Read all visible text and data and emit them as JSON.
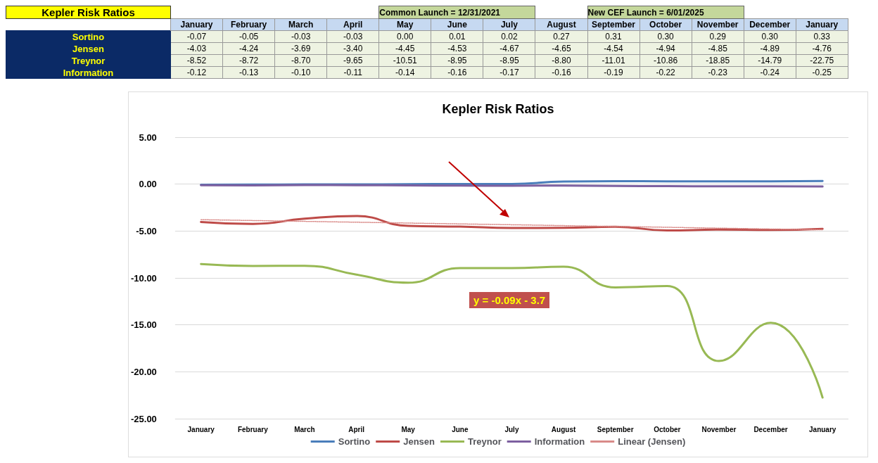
{
  "chart_data": {
    "type": "line",
    "title": "Kepler Risk Ratios",
    "categories": [
      "January",
      "February",
      "March",
      "April",
      "May",
      "June",
      "July",
      "August",
      "September",
      "October",
      "November",
      "December",
      "January"
    ],
    "series": [
      {
        "name": "Sortino",
        "color": "#4a7ebb",
        "values": [
          -0.07,
          -0.05,
          -0.03,
          -0.03,
          0.0,
          0.01,
          0.02,
          0.27,
          0.31,
          0.3,
          0.29,
          0.3,
          0.33
        ],
        "value_labels": [
          "-0.07",
          "-0.05",
          "-0.03",
          "-0.03",
          "0.00",
          "0.01",
          "0.02",
          "0.27",
          "0.31",
          "0.30",
          "0.29",
          "0.30",
          "0.33"
        ]
      },
      {
        "name": "Jensen",
        "color": "#be4b48",
        "values": [
          -4.03,
          -4.24,
          -3.69,
          -3.4,
          -4.45,
          -4.53,
          -4.67,
          -4.65,
          -4.54,
          -4.94,
          -4.85,
          -4.89,
          -4.76
        ],
        "value_labels": [
          "-4.03",
          "-4.24",
          "-3.69",
          "-3.40",
          "-4.45",
          "-4.53",
          "-4.67",
          "-4.65",
          "-4.54",
          "-4.94",
          "-4.85",
          "-4.89",
          "-4.76"
        ]
      },
      {
        "name": "Treynor",
        "color": "#98b954",
        "values": [
          -8.52,
          -8.72,
          -8.7,
          -9.65,
          -10.51,
          -8.95,
          -8.95,
          -8.8,
          -11.01,
          -10.86,
          -18.85,
          -14.79,
          -22.75
        ],
        "value_labels": [
          "-8.52",
          "-8.72",
          "-8.70",
          "-9.65",
          "-10.51",
          "-8.95",
          "-8.95",
          "-8.80",
          "-11.01",
          "-10.86",
          "-18.85",
          "-14.79",
          "-22.75"
        ]
      },
      {
        "name": "Information",
        "color": "#7d60a0",
        "values": [
          -0.12,
          -0.13,
          -0.1,
          -0.11,
          -0.14,
          -0.16,
          -0.17,
          -0.16,
          -0.19,
          -0.22,
          -0.23,
          -0.24,
          -0.25
        ],
        "value_labels": [
          "-0.12",
          "-0.13",
          "-0.10",
          "-0.11",
          "-0.14",
          "-0.16",
          "-0.17",
          "-0.16",
          "-0.19",
          "-0.22",
          "-0.23",
          "-0.24",
          "-0.25"
        ]
      },
      {
        "name": "Linear (Jensen)",
        "color": "#d98b89",
        "line_style": "dotted",
        "values": [
          -3.79,
          -3.88,
          -3.97,
          -4.06,
          -4.15,
          -4.24,
          -4.33,
          -4.42,
          -4.51,
          -4.6,
          -4.69,
          -4.78,
          -4.87
        ]
      }
    ],
    "ylim": [
      -25,
      5
    ],
    "yticks": [
      {
        "value": -25,
        "label": "-25.00"
      },
      {
        "value": -20,
        "label": "-20.00"
      },
      {
        "value": -15,
        "label": "-15.00"
      },
      {
        "value": -10,
        "label": "-10.00"
      },
      {
        "value": -5,
        "label": "-5.00"
      },
      {
        "value": 0,
        "label": "0.00"
      },
      {
        "value": 5,
        "label": "5.00"
      }
    ],
    "grid": "y",
    "legend": "bottom",
    "marker": "none",
    "annotations": [
      "Common Launch = 12/31/2021",
      "New CEF Launch = 6/01/2025",
      "y = -0.09x - 3.7"
    ]
  }
}
